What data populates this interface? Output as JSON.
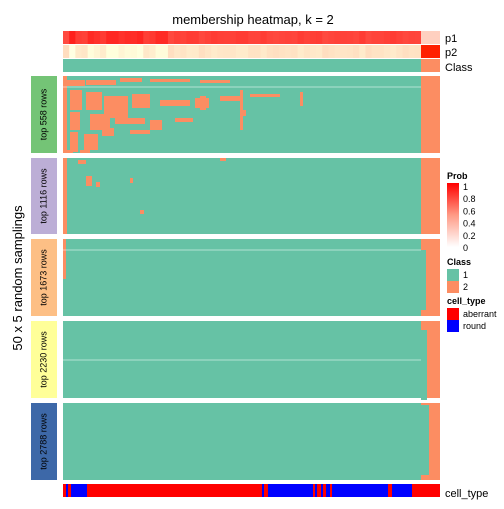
{
  "chart_data": {
    "type": "heatmap",
    "title": "membership heatmap, k = 2",
    "ylabel": "50 x 5 random samplings",
    "annotation_rows": [
      "p1",
      "p2",
      "Class"
    ],
    "bottom_annotation": "cell_type",
    "row_groups": [
      {
        "label": "top 558 rows",
        "color": "#74c476"
      },
      {
        "label": "top 1116 rows",
        "color": "#bcaed6"
      },
      {
        "label": "top 1673 rows",
        "color": "#fdbf85"
      },
      {
        "label": "top 2230 rows",
        "color": "#ffff99"
      },
      {
        "label": "top 2788 rows",
        "color": "#3d68a8"
      }
    ],
    "class_colors": {
      "1": "#66c2a5",
      "2": "#fc8d62"
    },
    "cell_type_colors": {
      "aberrant": "#ff0000",
      "round": "#0000ff"
    },
    "prob_scale": {
      "title": "Prob",
      "ticks": [
        "1",
        "0.8",
        "0.6",
        "0.4",
        "0.2",
        "0"
      ],
      "low": "#ffffff",
      "high": "#ff0000"
    },
    "legend": {
      "class_title": "Class",
      "class_items": [
        "1",
        "2"
      ],
      "cell_type_title": "cell_type",
      "cell_type_items": [
        "aberrant",
        "round"
      ]
    }
  }
}
